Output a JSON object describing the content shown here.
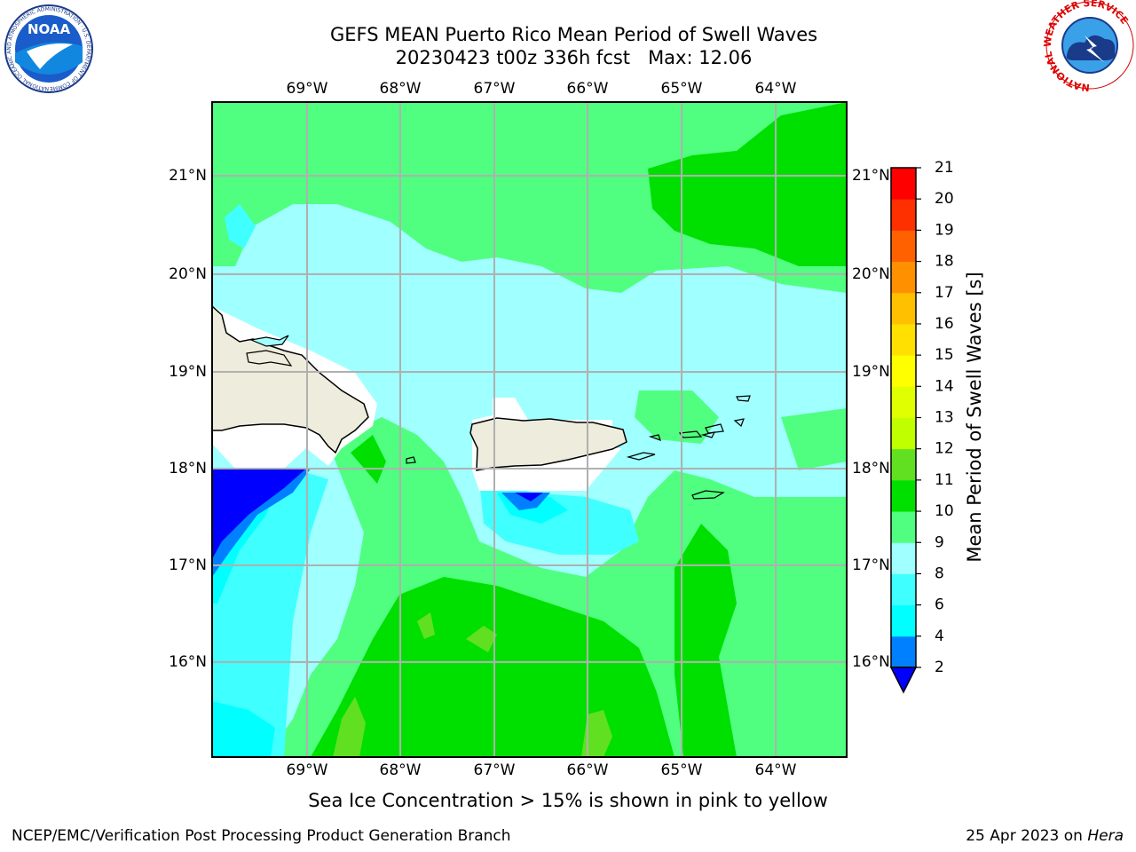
{
  "title": {
    "line1": "GEFS MEAN Puerto Rico Mean Period of Swell Waves",
    "line2": "20230423 t00z 336h fcst   Max: 12.06"
  },
  "logos": {
    "noaa": {
      "text": "NOAA",
      "ring_text": "NATIONAL OCEANIC AND ATMOSPHERIC ADMINISTRATION · U.S. DEPARTMENT OF COMMERCE"
    },
    "nws": {
      "ring_text": "NATIONAL WEATHER SERVICE"
    }
  },
  "map": {
    "lon_labels": [
      "69°W",
      "68°W",
      "67°W",
      "66°W",
      "65°W",
      "64°W"
    ],
    "lat_labels": [
      "21°N",
      "20°N",
      "19°N",
      "18°N",
      "17°N",
      "16°N"
    ],
    "lon_range": [
      -70.0,
      -63.3
    ],
    "lat_range": [
      15.0,
      21.75
    ],
    "grid": true
  },
  "colorbar": {
    "label": "Mean Period of Swell Waves [s]",
    "ticks": [
      "2",
      "4",
      "6",
      "8",
      "9",
      "10",
      "11",
      "12",
      "13",
      "14",
      "15",
      "16",
      "17",
      "18",
      "19",
      "20",
      "21"
    ],
    "colors": [
      "#0000ff",
      "#0080ff",
      "#00ffff",
      "#40ffff",
      "#a0ffff",
      "#50ff80",
      "#00e000",
      "#60e020",
      "#c0ff00",
      "#e0ff00",
      "#ffff00",
      "#ffe000",
      "#ffc000",
      "#ff9000",
      "#ff6000",
      "#ff3000",
      "#ff0000"
    ],
    "min_arrow_color": "#0000ff"
  },
  "note": "Sea Ice Concentration > 15% is shown in pink to yellow",
  "footer": {
    "left": "NCEP/EMC/Verification Post Processing Product Generation Branch",
    "date": "25 Apr 2023 on",
    "host": "Hera"
  }
}
